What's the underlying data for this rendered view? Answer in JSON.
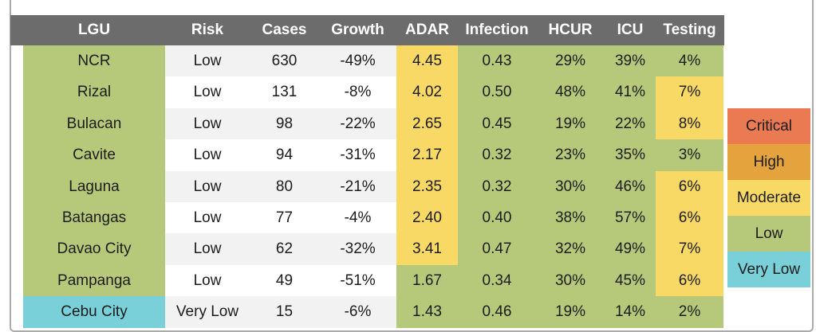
{
  "colors": {
    "header_bg": "#6c6c6c",
    "header_text": "#ffffff",
    "body_text": "#1c1c1c",
    "stripe_odd": "#f2f2f2",
    "stripe_even": "#ffffff",
    "frame_border": "#ababab",
    "critical": "#ea7a52",
    "high": "#e4a33c",
    "moderate": "#f8d966",
    "low": "#b6c97a",
    "very_low": "#7ad0d8"
  },
  "chart_data": {
    "type": "table",
    "columns": [
      {
        "key": "lgu",
        "label": "LGU"
      },
      {
        "key": "risk",
        "label": "Risk"
      },
      {
        "key": "cases",
        "label": "Cases"
      },
      {
        "key": "growth",
        "label": "Growth"
      },
      {
        "key": "adar",
        "label": "ADAR"
      },
      {
        "key": "infection",
        "label": "Infection"
      },
      {
        "key": "hcur",
        "label": "HCUR"
      },
      {
        "key": "icu",
        "label": "ICU"
      },
      {
        "key": "testing",
        "label": "Testing"
      }
    ],
    "rows": [
      {
        "lgu": "NCR",
        "risk": "Low",
        "cases": "630",
        "growth": "-49%",
        "adar": "4.45",
        "infection": "0.43",
        "hcur": "29%",
        "icu": "39%",
        "testing": "4%",
        "levels": {
          "lgu": "low",
          "adar": "moderate",
          "infection": "low",
          "hcur": "low",
          "icu": "low",
          "testing": "low"
        }
      },
      {
        "lgu": "Rizal",
        "risk": "Low",
        "cases": "131",
        "growth": "-8%",
        "adar": "4.02",
        "infection": "0.50",
        "hcur": "48%",
        "icu": "41%",
        "testing": "7%",
        "levels": {
          "lgu": "low",
          "adar": "moderate",
          "infection": "low",
          "hcur": "low",
          "icu": "low",
          "testing": "moderate"
        }
      },
      {
        "lgu": "Bulacan",
        "risk": "Low",
        "cases": "98",
        "growth": "-22%",
        "adar": "2.65",
        "infection": "0.45",
        "hcur": "19%",
        "icu": "22%",
        "testing": "8%",
        "levels": {
          "lgu": "low",
          "adar": "moderate",
          "infection": "low",
          "hcur": "low",
          "icu": "low",
          "testing": "moderate"
        }
      },
      {
        "lgu": "Cavite",
        "risk": "Low",
        "cases": "94",
        "growth": "-31%",
        "adar": "2.17",
        "infection": "0.32",
        "hcur": "23%",
        "icu": "35%",
        "testing": "3%",
        "levels": {
          "lgu": "low",
          "adar": "moderate",
          "infection": "low",
          "hcur": "low",
          "icu": "low",
          "testing": "low"
        }
      },
      {
        "lgu": "Laguna",
        "risk": "Low",
        "cases": "80",
        "growth": "-21%",
        "adar": "2.35",
        "infection": "0.32",
        "hcur": "30%",
        "icu": "46%",
        "testing": "6%",
        "levels": {
          "lgu": "low",
          "adar": "moderate",
          "infection": "low",
          "hcur": "low",
          "icu": "low",
          "testing": "moderate"
        }
      },
      {
        "lgu": "Batangas",
        "risk": "Low",
        "cases": "77",
        "growth": "-4%",
        "adar": "2.40",
        "infection": "0.40",
        "hcur": "38%",
        "icu": "57%",
        "testing": "6%",
        "levels": {
          "lgu": "low",
          "adar": "moderate",
          "infection": "low",
          "hcur": "low",
          "icu": "low",
          "testing": "moderate"
        }
      },
      {
        "lgu": "Davao City",
        "risk": "Low",
        "cases": "62",
        "growth": "-32%",
        "adar": "3.41",
        "infection": "0.47",
        "hcur": "32%",
        "icu": "49%",
        "testing": "7%",
        "levels": {
          "lgu": "low",
          "adar": "moderate",
          "infection": "low",
          "hcur": "low",
          "icu": "low",
          "testing": "moderate"
        }
      },
      {
        "lgu": "Pampanga",
        "risk": "Low",
        "cases": "49",
        "growth": "-51%",
        "adar": "1.67",
        "infection": "0.34",
        "hcur": "30%",
        "icu": "45%",
        "testing": "6%",
        "levels": {
          "lgu": "low",
          "adar": "low",
          "infection": "low",
          "hcur": "low",
          "icu": "low",
          "testing": "moderate"
        }
      },
      {
        "lgu": "Cebu City",
        "risk": "Very Low",
        "cases": "15",
        "growth": "-6%",
        "adar": "1.43",
        "infection": "0.46",
        "hcur": "19%",
        "icu": "14%",
        "testing": "2%",
        "levels": {
          "lgu": "very_low",
          "adar": "low",
          "infection": "low",
          "hcur": "low",
          "icu": "low",
          "testing": "low"
        }
      }
    ],
    "legend": [
      {
        "label": "Critical",
        "level": "critical"
      },
      {
        "label": "High",
        "level": "high"
      },
      {
        "label": "Moderate",
        "level": "moderate"
      },
      {
        "label": "Low",
        "level": "low"
      },
      {
        "label": "Very Low",
        "level": "very_low"
      }
    ],
    "layout_hints": {
      "legend_position": "right",
      "striped_columns": [
        "risk",
        "cases",
        "growth"
      ],
      "grid": false
    }
  }
}
